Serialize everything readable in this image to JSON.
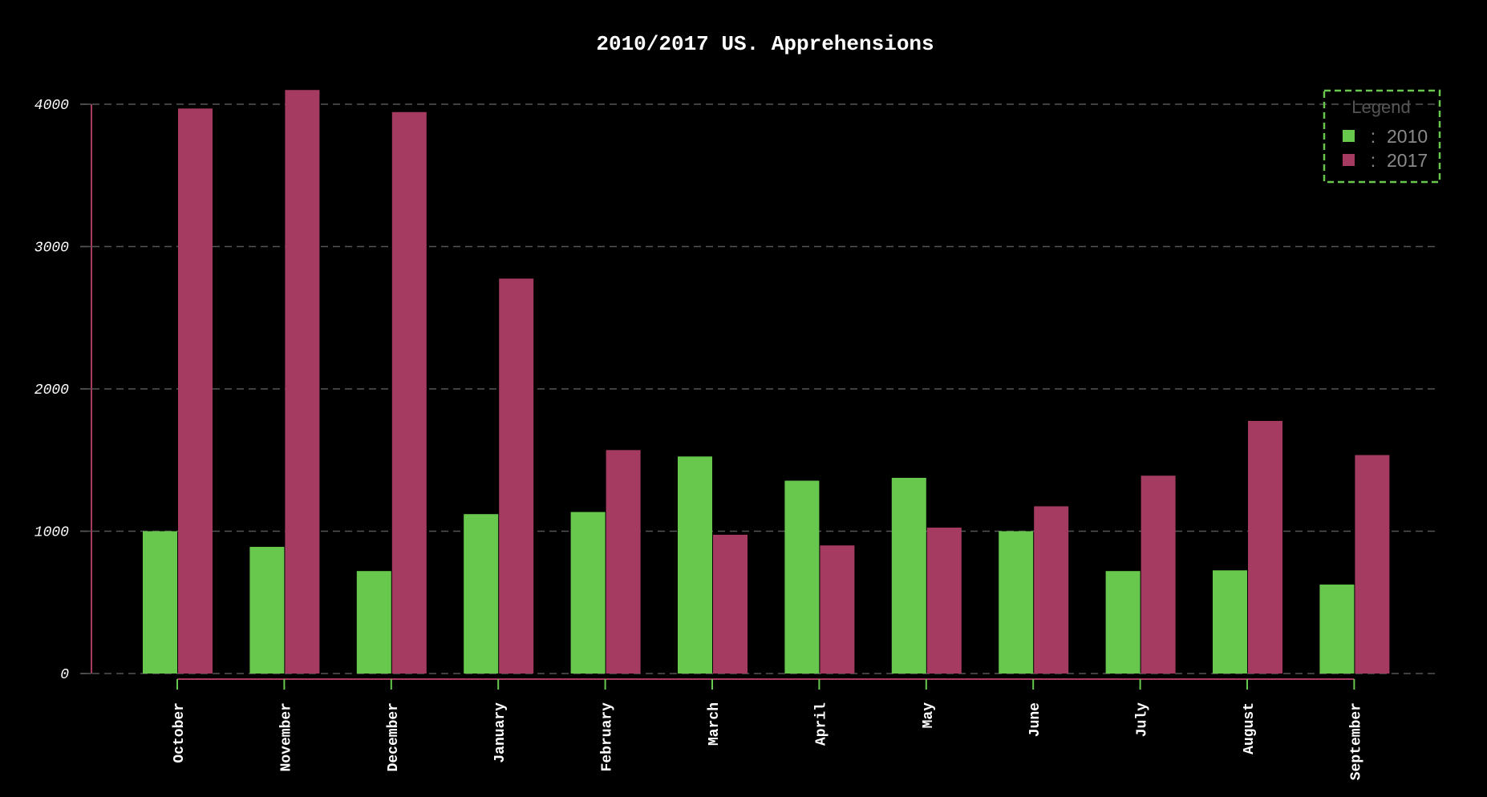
{
  "chart_data": {
    "type": "bar",
    "title": "2010/2017 US. Apprehensions",
    "xlabel": "",
    "ylabel": "",
    "categories": [
      "October",
      "November",
      "December",
      "January",
      "February",
      "March",
      "April",
      "May",
      "June",
      "July",
      "August",
      "September"
    ],
    "series": [
      {
        "name": "2010",
        "color": "#67c84d",
        "values": [
          1000,
          890,
          720,
          1120,
          1135,
          1525,
          1355,
          1375,
          1000,
          720,
          725,
          625
        ]
      },
      {
        "name": "2017",
        "color": "#a53b60",
        "values": [
          3970,
          4100,
          3945,
          2775,
          1570,
          975,
          900,
          1025,
          1175,
          1390,
          1775,
          1535
        ]
      }
    ],
    "ylim": [
      0,
      4000
    ],
    "yticks": [
      0,
      1000,
      2000,
      3000,
      4000
    ],
    "grid": true,
    "legend": {
      "title": "Legend",
      "placement": "top-right",
      "separator": ":"
    }
  },
  "colors": {
    "background": "#000000",
    "text": "#ffffff",
    "grid": "#555555",
    "axis": "#a53b60",
    "tick_mark": "#67c84d",
    "legend_border": "#67c84d"
  }
}
